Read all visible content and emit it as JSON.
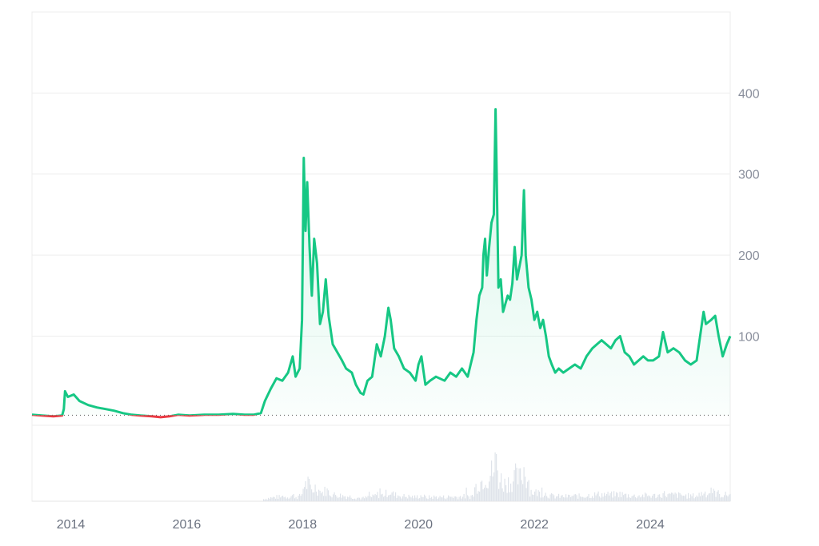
{
  "chart_data": {
    "type": "line",
    "title": "",
    "xlabel": "",
    "ylabel": "",
    "x_ticks": [
      "2014",
      "2016",
      "2018",
      "2020",
      "2022",
      "2024"
    ],
    "y_ticks": [
      100,
      200,
      300,
      400
    ],
    "xlim": [
      2013.33,
      2025.38
    ],
    "ylim": [
      -10,
      500
    ],
    "baseline": 2.4,
    "grid": true,
    "legend": "none",
    "colors": {
      "up": "#16c784",
      "down": "#ea3943",
      "grid": "#eeeeee",
      "volume": "#dfe3ea"
    },
    "series": [
      {
        "values": [
          [
            2013.33,
            3
          ],
          [
            2013.5,
            2
          ],
          [
            2013.7,
            1
          ],
          [
            2013.85,
            2
          ],
          [
            2013.88,
            10
          ],
          [
            2013.9,
            32
          ],
          [
            2013.95,
            25
          ],
          [
            2014.05,
            28
          ],
          [
            2014.15,
            20
          ],
          [
            2014.3,
            15
          ],
          [
            2014.45,
            12
          ],
          [
            2014.6,
            10
          ],
          [
            2014.75,
            8
          ],
          [
            2014.9,
            5
          ],
          [
            2015.05,
            3
          ],
          [
            2015.2,
            2
          ],
          [
            2015.4,
            1
          ],
          [
            2015.55,
            0
          ],
          [
            2015.7,
            1
          ],
          [
            2015.85,
            3
          ],
          [
            2016.05,
            2
          ],
          [
            2016.3,
            3
          ],
          [
            2016.55,
            3
          ],
          [
            2016.8,
            4
          ],
          [
            2017.0,
            3
          ],
          [
            2017.15,
            3
          ],
          [
            2017.28,
            5
          ],
          [
            2017.35,
            20
          ],
          [
            2017.45,
            35
          ],
          [
            2017.55,
            48
          ],
          [
            2017.65,
            45
          ],
          [
            2017.75,
            55
          ],
          [
            2017.83,
            75
          ],
          [
            2017.88,
            50
          ],
          [
            2017.95,
            60
          ],
          [
            2017.99,
            120
          ],
          [
            2018.02,
            320
          ],
          [
            2018.05,
            230
          ],
          [
            2018.08,
            290
          ],
          [
            2018.12,
            210
          ],
          [
            2018.16,
            150
          ],
          [
            2018.2,
            220
          ],
          [
            2018.25,
            190
          ],
          [
            2018.3,
            115
          ],
          [
            2018.35,
            130
          ],
          [
            2018.4,
            170
          ],
          [
            2018.45,
            125
          ],
          [
            2018.52,
            90
          ],
          [
            2018.6,
            80
          ],
          [
            2018.68,
            70
          ],
          [
            2018.75,
            60
          ],
          [
            2018.85,
            55
          ],
          [
            2018.92,
            40
          ],
          [
            2019.0,
            30
          ],
          [
            2019.05,
            28
          ],
          [
            2019.12,
            45
          ],
          [
            2019.2,
            50
          ],
          [
            2019.28,
            90
          ],
          [
            2019.35,
            75
          ],
          [
            2019.42,
            100
          ],
          [
            2019.48,
            135
          ],
          [
            2019.52,
            120
          ],
          [
            2019.58,
            85
          ],
          [
            2019.66,
            75
          ],
          [
            2019.75,
            60
          ],
          [
            2019.85,
            55
          ],
          [
            2019.95,
            45
          ],
          [
            2020.0,
            65
          ],
          [
            2020.05,
            75
          ],
          [
            2020.12,
            40
          ],
          [
            2020.2,
            45
          ],
          [
            2020.3,
            50
          ],
          [
            2020.45,
            45
          ],
          [
            2020.55,
            55
          ],
          [
            2020.65,
            50
          ],
          [
            2020.75,
            60
          ],
          [
            2020.85,
            50
          ],
          [
            2020.95,
            80
          ],
          [
            2021.0,
            120
          ],
          [
            2021.05,
            150
          ],
          [
            2021.1,
            160
          ],
          [
            2021.12,
            200
          ],
          [
            2021.15,
            220
          ],
          [
            2021.18,
            175
          ],
          [
            2021.22,
            210
          ],
          [
            2021.26,
            240
          ],
          [
            2021.3,
            250
          ],
          [
            2021.33,
            380
          ],
          [
            2021.35,
            300
          ],
          [
            2021.38,
            160
          ],
          [
            2021.42,
            170
          ],
          [
            2021.46,
            130
          ],
          [
            2021.5,
            140
          ],
          [
            2021.54,
            150
          ],
          [
            2021.58,
            145
          ],
          [
            2021.62,
            165
          ],
          [
            2021.66,
            210
          ],
          [
            2021.7,
            170
          ],
          [
            2021.74,
            185
          ],
          [
            2021.78,
            200
          ],
          [
            2021.82,
            280
          ],
          [
            2021.85,
            200
          ],
          [
            2021.9,
            160
          ],
          [
            2021.95,
            145
          ],
          [
            2022.0,
            120
          ],
          [
            2022.05,
            130
          ],
          [
            2022.1,
            110
          ],
          [
            2022.15,
            120
          ],
          [
            2022.2,
            100
          ],
          [
            2022.25,
            75
          ],
          [
            2022.3,
            65
          ],
          [
            2022.36,
            55
          ],
          [
            2022.42,
            60
          ],
          [
            2022.5,
            55
          ],
          [
            2022.6,
            60
          ],
          [
            2022.7,
            65
          ],
          [
            2022.8,
            60
          ],
          [
            2022.9,
            75
          ],
          [
            2023.0,
            85
          ],
          [
            2023.08,
            90
          ],
          [
            2023.16,
            95
          ],
          [
            2023.24,
            90
          ],
          [
            2023.32,
            85
          ],
          [
            2023.4,
            95
          ],
          [
            2023.48,
            100
          ],
          [
            2023.56,
            80
          ],
          [
            2023.64,
            75
          ],
          [
            2023.72,
            65
          ],
          [
            2023.8,
            70
          ],
          [
            2023.88,
            75
          ],
          [
            2023.96,
            70
          ],
          [
            2024.05,
            70
          ],
          [
            2024.15,
            75
          ],
          [
            2024.22,
            105
          ],
          [
            2024.3,
            80
          ],
          [
            2024.4,
            85
          ],
          [
            2024.5,
            80
          ],
          [
            2024.6,
            70
          ],
          [
            2024.7,
            65
          ],
          [
            2024.8,
            70
          ],
          [
            2024.88,
            110
          ],
          [
            2024.92,
            130
          ],
          [
            2024.96,
            115
          ],
          [
            2025.05,
            120
          ],
          [
            2025.12,
            125
          ],
          [
            2025.18,
            100
          ],
          [
            2025.25,
            75
          ],
          [
            2025.32,
            90
          ],
          [
            2025.38,
            100
          ]
        ]
      }
    ]
  }
}
